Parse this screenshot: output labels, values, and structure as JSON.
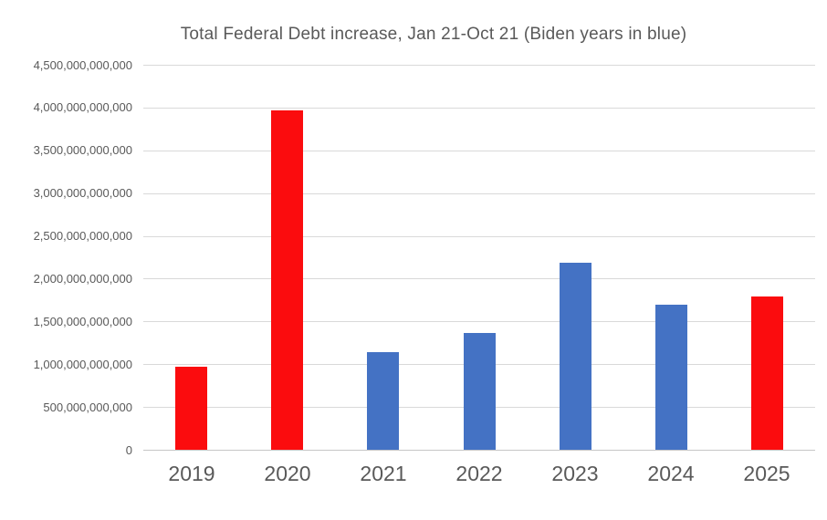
{
  "chart_title": "Total Federal Debt increase, Jan 21-Oct 21 (Biden years in blue)",
  "chart_data": {
    "type": "bar",
    "title": "Total Federal Debt increase, Jan 21-Oct 21 (Biden years in blue)",
    "categories": [
      "2019",
      "2020",
      "2021",
      "2022",
      "2023",
      "2024",
      "2025"
    ],
    "values": [
      970000000000,
      3970000000000,
      1140000000000,
      1370000000000,
      2190000000000,
      1700000000000,
      1790000000000
    ],
    "bar_colors": [
      "#fb0c0e",
      "#fb0c0e",
      "#4472c4",
      "#4472c4",
      "#4472c4",
      "#4472c4",
      "#fb0c0e"
    ],
    "xlabel": "",
    "ylabel": "",
    "ylim": [
      0,
      4500000000000
    ],
    "ytick_interval": 500000000000,
    "ytick_labels": [
      "0",
      "500,000,000,000",
      "1,000,000,000,000",
      "1,500,000,000,000",
      "2,000,000,000,000",
      "2,500,000,000,000",
      "3,000,000,000,000",
      "3,500,000,000,000",
      "4,000,000,000,000",
      "4,500,000,000,000"
    ],
    "grid": true,
    "legend": "none",
    "background_color": "#ffffff",
    "text_color": "#595959",
    "gridline_color": "#d9d9d9"
  }
}
